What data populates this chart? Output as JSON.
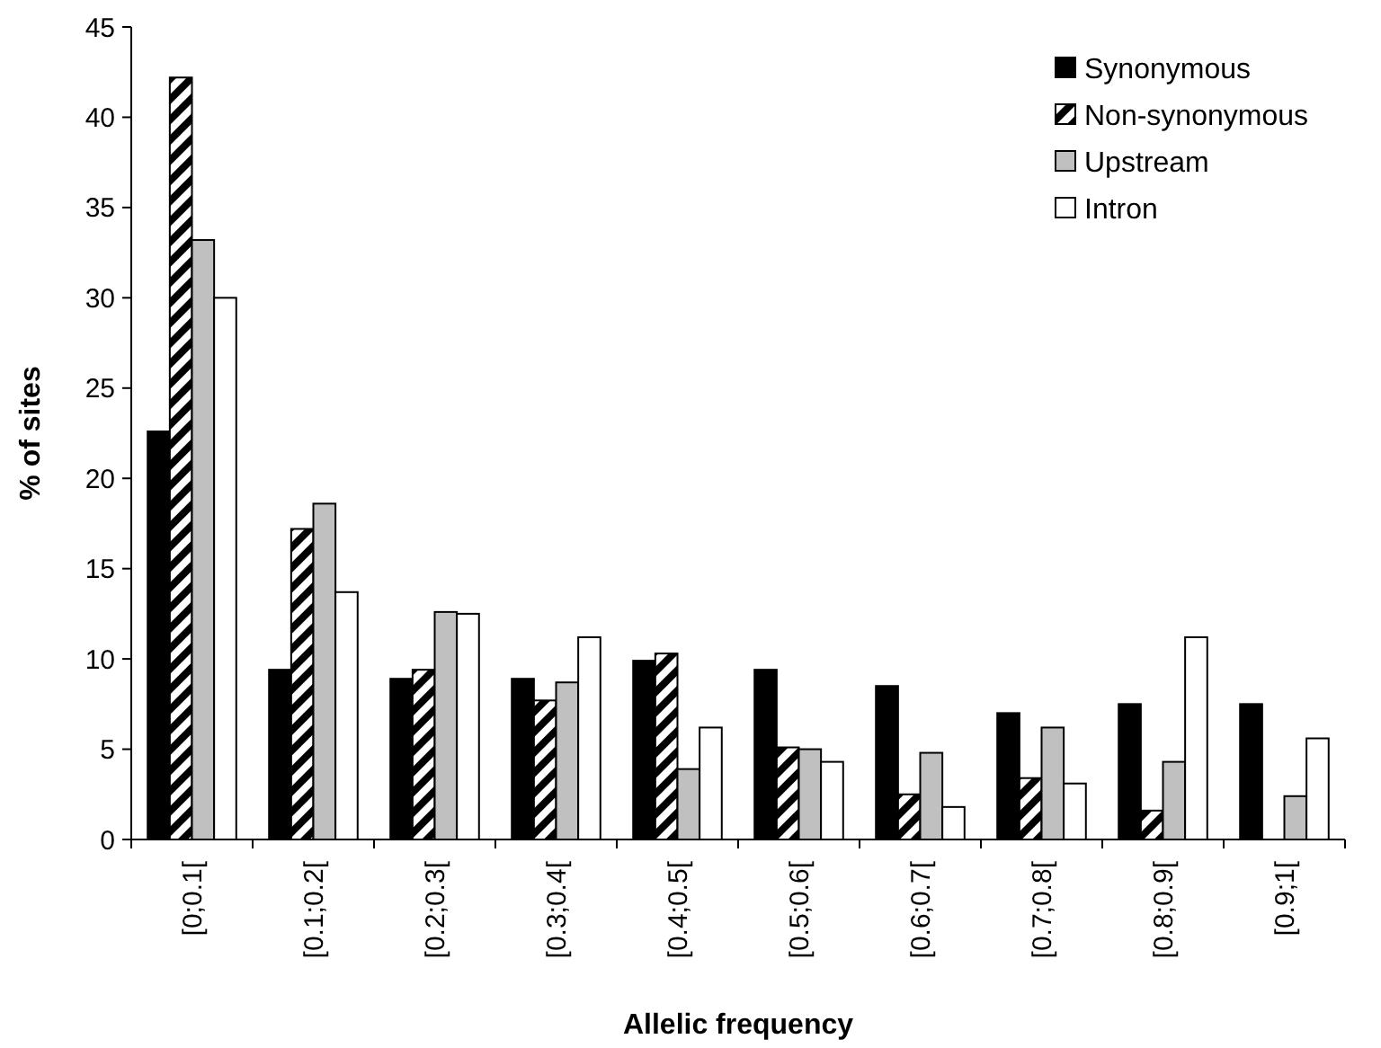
{
  "chart_data": {
    "type": "bar",
    "xlabel": "Allelic frequency",
    "ylabel": "% of sites",
    "categories": [
      "[0;0.1[",
      "[0.1;0.2[",
      "[0.2;0.3[",
      "[0.3;0.4[",
      "[0.4;0.5[",
      "[0.5;0.6[",
      "[0.6;0.7[",
      "[0.7;0.8[",
      "[0.8;0.9[",
      "[0.9;1["
    ],
    "series": [
      {
        "name": "Synonymous",
        "color": "#000000",
        "values": [
          22.6,
          9.4,
          8.9,
          8.9,
          9.9,
          9.4,
          8.5,
          7.0,
          7.5,
          7.5
        ]
      },
      {
        "name": "Non-synonymous",
        "color": "#000000",
        "values": [
          42.2,
          17.2,
          9.4,
          7.7,
          10.3,
          5.1,
          2.5,
          3.4,
          1.6,
          0
        ]
      },
      {
        "name": "Upstream",
        "color": "#c0c0c0",
        "values": [
          33.2,
          18.6,
          12.6,
          8.7,
          3.9,
          5.0,
          4.8,
          6.2,
          4.3,
          2.4
        ]
      },
      {
        "name": "Intron",
        "color": "#ffffff",
        "values": [
          30.0,
          13.7,
          12.5,
          11.2,
          6.2,
          4.3,
          1.8,
          3.1,
          11.2,
          5.6
        ]
      }
    ],
    "ylim": [
      0,
      45
    ],
    "yticks": [
      0,
      5,
      10,
      15,
      20,
      25,
      30,
      35,
      40,
      45
    ],
    "grid": false,
    "legend": "top right"
  }
}
